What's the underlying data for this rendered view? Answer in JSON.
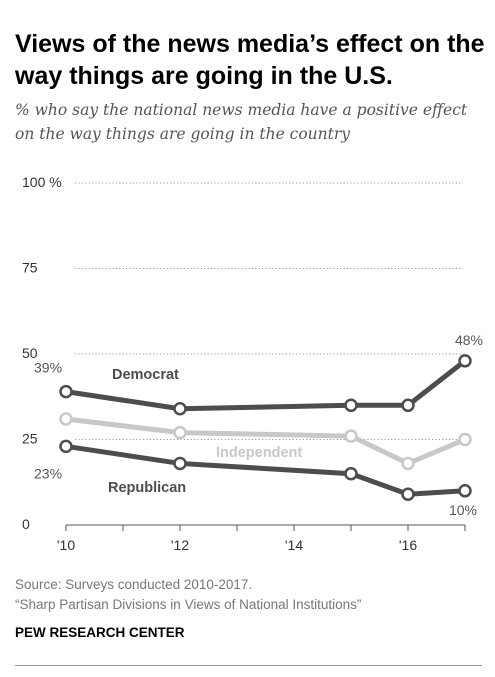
{
  "header": {
    "title": "Views of the news media’s effect on the way things are going in the U.S.",
    "subtitle": "% who say the national news media have a positive effect on the way things are going in the country"
  },
  "footer": {
    "source_line1": "Source: Surveys conducted 2010-2017.",
    "source_line2": "“Sharp Partisan Divisions in Views of National Institutions”",
    "brand": "PEW RESEARCH CENTER"
  },
  "chart_data": {
    "type": "line",
    "x_tick_labels": [
      "'10",
      "'12",
      "'14",
      "'16"
    ],
    "x_tick_values": [
      2010,
      2012,
      2014,
      2016
    ],
    "xlim": [
      2010,
      2017
    ],
    "ylim": [
      0,
      100
    ],
    "y_ticks": [
      {
        "value": 0,
        "label": "0"
      },
      {
        "value": 25,
        "label": "25"
      },
      {
        "value": 50,
        "label": "50"
      },
      {
        "value": 75,
        "label": "75"
      },
      {
        "value": 100,
        "label": "100 %"
      }
    ],
    "grid": "dotted horizontal at 50, 75, 100",
    "series": [
      {
        "name": "Democrat",
        "color": "#4d4d4d",
        "x": [
          2010,
          2012,
          2015,
          2016,
          2017
        ],
        "values": [
          39,
          34,
          35,
          35,
          48
        ],
        "labels": [
          {
            "x": 2010,
            "text": "39%"
          },
          {
            "x": 2017,
            "text": "48%"
          }
        ]
      },
      {
        "name": "Independent",
        "color": "#c8c8c8",
        "x": [
          2010,
          2012,
          2015,
          2016,
          2017
        ],
        "values": [
          31,
          27,
          26,
          18,
          25
        ],
        "labels": []
      },
      {
        "name": "Republican",
        "color": "#4d4d4d",
        "x": [
          2010,
          2012,
          2015,
          2016,
          2017
        ],
        "values": [
          23,
          18,
          15,
          9,
          10
        ],
        "labels": [
          {
            "x": 2010,
            "text": "23%"
          },
          {
            "x": 2017,
            "text": "10%"
          }
        ]
      }
    ]
  }
}
